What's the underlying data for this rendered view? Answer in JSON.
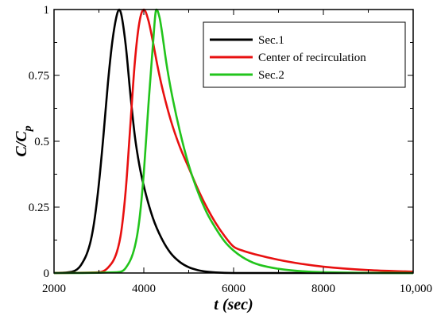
{
  "chart_data": {
    "type": "line",
    "title": "",
    "xlabel": "t (sec)",
    "ylabel_main": "C/C",
    "ylabel_sub": "p",
    "xlim": [
      2000,
      10000
    ],
    "ylim": [
      0,
      1
    ],
    "xticks": [
      2000,
      4000,
      6000,
      8000,
      10000
    ],
    "xtick_labels": [
      "2000",
      "4000",
      "6000",
      "8000",
      "10,000"
    ],
    "yticks": [
      0,
      0.25,
      0.5,
      0.75,
      1
    ],
    "ytick_labels": [
      "0",
      "0.25",
      "0.5",
      "0.75",
      "1"
    ],
    "grid": false,
    "legend_position": "top-right",
    "series": [
      {
        "name": "Sec.1",
        "color": "#000000",
        "x": [
          2000,
          2400,
          2600,
          2800,
          2900,
          3000,
          3100,
          3200,
          3300,
          3400,
          3450,
          3500,
          3600,
          3700,
          3800,
          3900,
          4000,
          4200,
          4400,
          4600,
          4800,
          5000,
          5200,
          5400,
          5600,
          6000,
          10000
        ],
        "y": [
          0,
          0.005,
          0.03,
          0.11,
          0.2,
          0.34,
          0.52,
          0.72,
          0.88,
          0.98,
          1.0,
          0.98,
          0.86,
          0.68,
          0.52,
          0.41,
          0.33,
          0.21,
          0.13,
          0.075,
          0.042,
          0.022,
          0.011,
          0.005,
          0.002,
          0.0,
          0.0
        ]
      },
      {
        "name": "Center of recirculation",
        "color": "#e81010",
        "x": [
          2000,
          3000,
          3200,
          3400,
          3500,
          3600,
          3700,
          3800,
          3900,
          4000,
          4100,
          4200,
          4300,
          4400,
          4600,
          4800,
          5000,
          5200,
          5400,
          5600,
          5800,
          6000,
          6200,
          6500,
          7000,
          7500,
          8000,
          9000,
          10000
        ],
        "y": [
          0,
          0.003,
          0.02,
          0.08,
          0.16,
          0.32,
          0.56,
          0.8,
          0.95,
          1.0,
          0.96,
          0.88,
          0.79,
          0.71,
          0.58,
          0.48,
          0.4,
          0.32,
          0.25,
          0.19,
          0.14,
          0.1,
          0.085,
          0.07,
          0.05,
          0.035,
          0.024,
          0.011,
          0.005
        ]
      },
      {
        "name": "Sec.2",
        "color": "#22c41c",
        "x": [
          2000,
          3400,
          3600,
          3800,
          3900,
          4000,
          4100,
          4200,
          4280,
          4350,
          4400,
          4500,
          4600,
          4800,
          5000,
          5200,
          5400,
          5600,
          5800,
          6000,
          6200,
          6500,
          7000,
          7500,
          8000,
          10000
        ],
        "y": [
          0,
          0.003,
          0.02,
          0.1,
          0.2,
          0.38,
          0.63,
          0.86,
          1.0,
          0.97,
          0.92,
          0.8,
          0.7,
          0.54,
          0.41,
          0.31,
          0.23,
          0.17,
          0.12,
          0.085,
          0.06,
          0.035,
          0.016,
          0.007,
          0.003,
          0.0
        ]
      }
    ]
  }
}
